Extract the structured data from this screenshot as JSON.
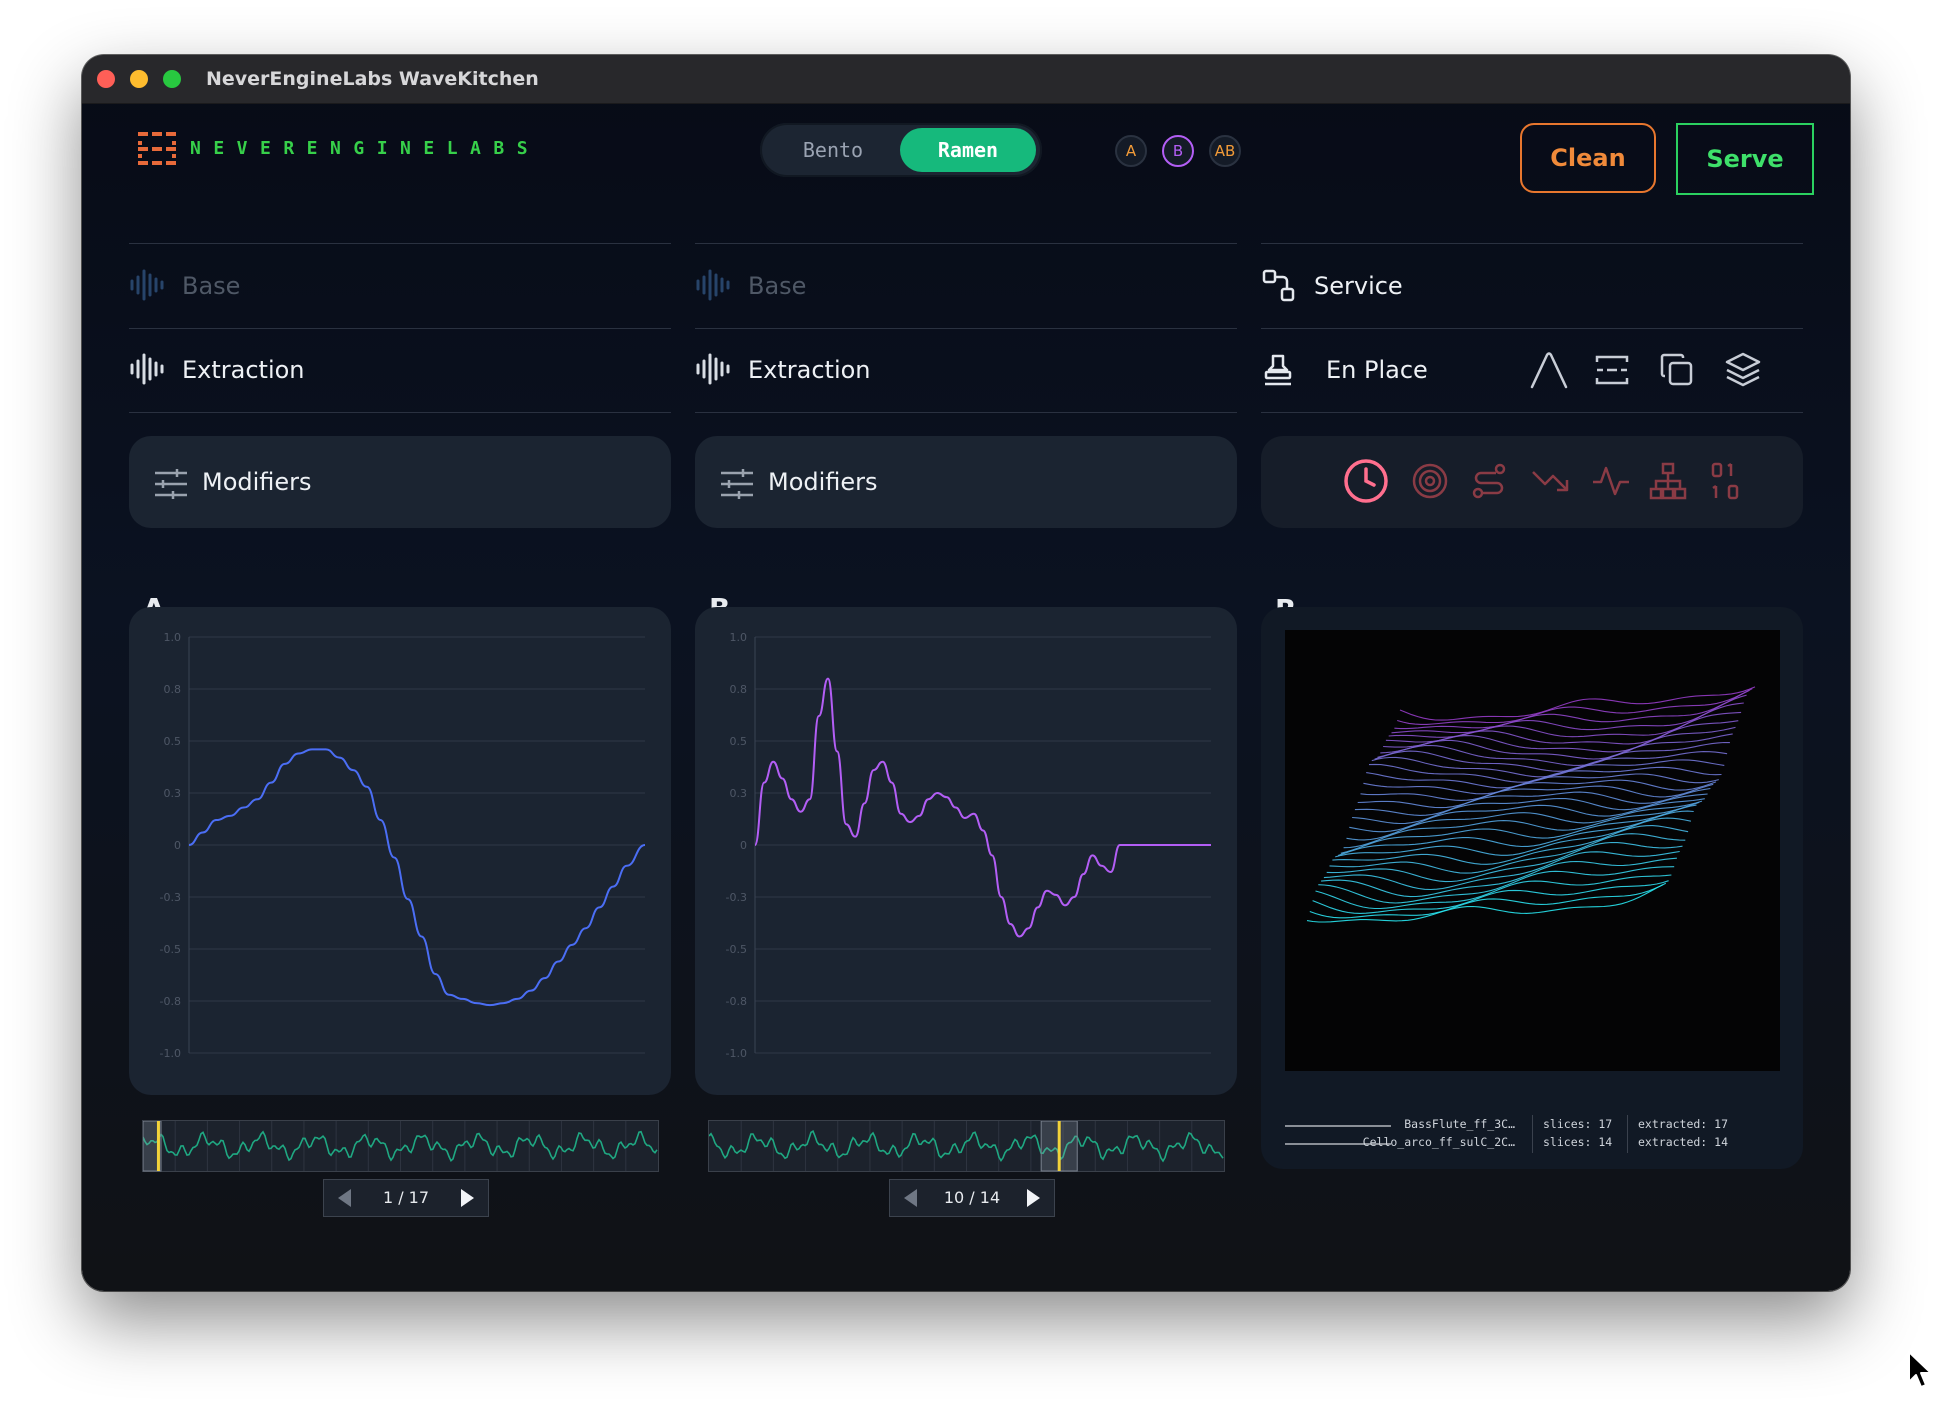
{
  "window": {
    "title": "NeverEngineLabs WaveKitchen"
  },
  "brand": {
    "logo_text": "NEVERENGINELABS"
  },
  "mode_toggle": {
    "options": [
      "Bento",
      "Ramen"
    ],
    "selected": "Ramen"
  },
  "channels": [
    {
      "label": "A",
      "color": "#f29b38"
    },
    {
      "label": "B",
      "color": "#b35ef5"
    },
    {
      "label": "AB",
      "color": "#f29b38"
    }
  ],
  "actions": {
    "clean": "Clean",
    "serve": "Serve"
  },
  "columns": {
    "a": {
      "base": "Base",
      "extraction": "Extraction",
      "modifiers": "Modifiers"
    },
    "b": {
      "base": "Base",
      "extraction": "Extraction",
      "modifiers": "Modifiers"
    },
    "r": {
      "service": "Service",
      "en_place": "En Place"
    }
  },
  "icons": {
    "en_place_tools": [
      "envelope-peak-icon",
      "spectrum-icon",
      "copy-icon",
      "layers-icon"
    ],
    "toolbar": [
      "clock-icon",
      "target-icon",
      "route-icon",
      "trend-down-icon",
      "activity-icon",
      "hierarchy-icon",
      "binary-icon"
    ]
  },
  "colors": {
    "accent_green": "#16b97c",
    "wave_a": "#4b6ef5",
    "wave_b": "#b35ef5",
    "clean": "#f08a3a",
    "serve": "#3ee06a",
    "strip_wave": "#1fa882",
    "playhead": "#f2d23a"
  },
  "panels": {
    "a": {
      "letter": "A",
      "pager": "1 / 17",
      "chart_data": {
        "type": "line",
        "ylim": [
          -1.0,
          1.0
        ],
        "yticks": [
          "1.0",
          "0.8",
          "0.5",
          "0.3",
          "0",
          "-0.3",
          "-0.5",
          "-0.8",
          "-1.0"
        ],
        "grid": true,
        "series": [
          {
            "color": "#4b6ef5",
            "x": [
              0,
              0.03,
              0.06,
              0.09,
              0.12,
              0.15,
              0.18,
              0.21,
              0.24,
              0.27,
              0.3,
              0.33,
              0.36,
              0.39,
              0.42,
              0.45,
              0.48,
              0.51,
              0.54,
              0.57,
              0.6,
              0.63,
              0.66,
              0.69,
              0.72,
              0.75,
              0.78,
              0.81,
              0.84,
              0.87,
              0.9,
              0.93,
              0.96,
              1.0
            ],
            "y": [
              0.0,
              0.06,
              0.12,
              0.14,
              0.18,
              0.22,
              0.3,
              0.39,
              0.44,
              0.46,
              0.46,
              0.42,
              0.36,
              0.28,
              0.12,
              -0.06,
              -0.26,
              -0.44,
              -0.62,
              -0.72,
              -0.74,
              -0.76,
              -0.77,
              -0.76,
              -0.74,
              -0.7,
              -0.64,
              -0.56,
              -0.48,
              -0.4,
              -0.3,
              -0.2,
              -0.1,
              0.0
            ]
          }
        ]
      }
    },
    "b": {
      "letter": "B",
      "pager": "10 / 14",
      "chart_data": {
        "type": "line",
        "ylim": [
          -1.0,
          1.0
        ],
        "yticks": [
          "1.0",
          "0.8",
          "0.5",
          "0.3",
          "0",
          "-0.3",
          "-0.5",
          "-0.8",
          "-1.0"
        ],
        "grid": true,
        "series": [
          {
            "color": "#b35ef5",
            "x": [
              0,
              0.02,
              0.04,
              0.06,
              0.08,
              0.1,
              0.12,
              0.14,
              0.16,
              0.18,
              0.2,
              0.22,
              0.24,
              0.26,
              0.28,
              0.3,
              0.32,
              0.34,
              0.36,
              0.38,
              0.4,
              0.42,
              0.44,
              0.46,
              0.48,
              0.5,
              0.52,
              0.54,
              0.56,
              0.58,
              0.6,
              0.62,
              0.64,
              0.66,
              0.68,
              0.7,
              0.72,
              0.74,
              0.76,
              0.78,
              0.8,
              0.82,
              0.84,
              0.86,
              0.88,
              0.9,
              0.92,
              0.94,
              0.96,
              0.98,
              1.0
            ],
            "y": [
              0.0,
              0.3,
              0.4,
              0.32,
              0.22,
              0.16,
              0.22,
              0.62,
              0.8,
              0.45,
              0.1,
              0.04,
              0.2,
              0.36,
              0.4,
              0.3,
              0.15,
              0.11,
              0.14,
              0.22,
              0.25,
              0.23,
              0.18,
              0.13,
              0.15,
              0.07,
              -0.05,
              -0.25,
              -0.38,
              -0.44,
              -0.4,
              -0.3,
              -0.22,
              -0.24,
              -0.29,
              -0.25,
              -0.14,
              -0.05,
              -0.1,
              -0.13,
              -0.0,
              0.0,
              0.0,
              0.0,
              0.0,
              0.0,
              0.0,
              0.0,
              0.0,
              0.0,
              0.0
            ]
          }
        ]
      }
    },
    "r": {
      "letter": "R",
      "legend": [
        {
          "file": "BassFlute_ff_3C…",
          "slices": "slices: 17",
          "extracted": "extracted: 17"
        },
        {
          "file": "Cello_arco_ff_sulC_2C…",
          "slices": "slices: 14",
          "extracted": "extracted: 14"
        }
      ]
    }
  },
  "strips": {
    "a": {
      "playhead": 0.03,
      "window_start": 0.0,
      "window_end": 0.035
    },
    "b": {
      "playhead": 0.68,
      "window_start": 0.645,
      "window_end": 0.715
    }
  }
}
